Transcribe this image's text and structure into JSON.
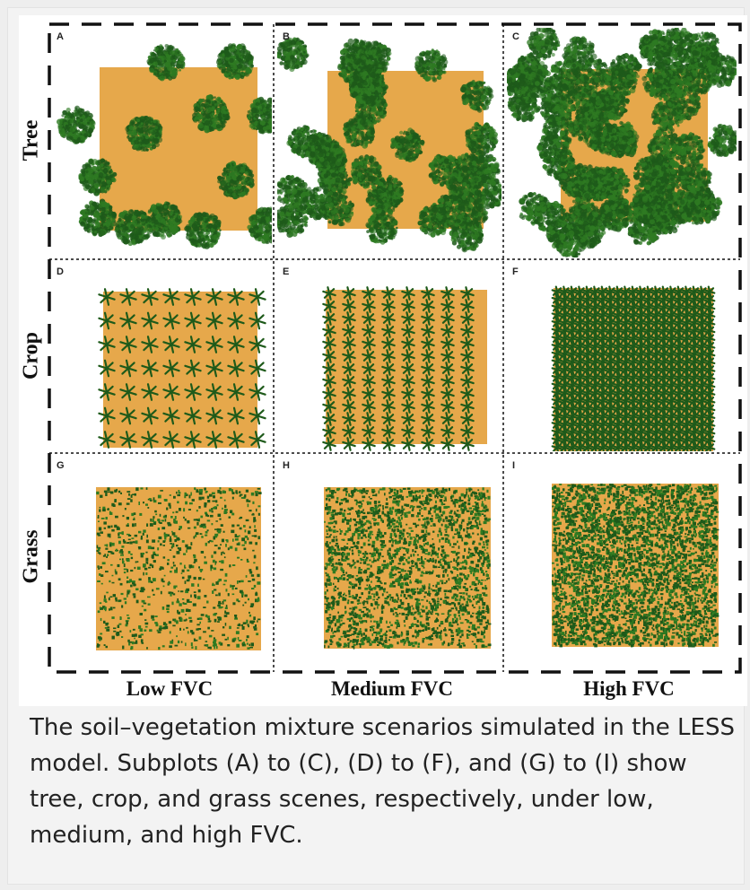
{
  "figure": {
    "panels": [
      {
        "letter": "A",
        "vegetation": "tree",
        "level": "low"
      },
      {
        "letter": "B",
        "vegetation": "tree",
        "level": "medium"
      },
      {
        "letter": "C",
        "vegetation": "tree",
        "level": "high"
      },
      {
        "letter": "D",
        "vegetation": "crop",
        "level": "low"
      },
      {
        "letter": "E",
        "vegetation": "crop",
        "level": "medium"
      },
      {
        "letter": "F",
        "vegetation": "crop",
        "level": "high"
      },
      {
        "letter": "G",
        "vegetation": "grass",
        "level": "low"
      },
      {
        "letter": "H",
        "vegetation": "grass",
        "level": "medium"
      },
      {
        "letter": "I",
        "vegetation": "grass",
        "level": "high"
      }
    ],
    "row_labels": [
      "Tree",
      "Crop",
      "Grass"
    ],
    "column_labels": [
      "Low FVC",
      "Medium FVC",
      "High FVC"
    ],
    "colors": {
      "soil": "#e6a84b",
      "vegetation_dark": "#1e5a1a",
      "vegetation_mid": "#2e7a22",
      "frame": "#111111"
    }
  },
  "caption": "The soil–vegetation mixture scenarios simulated in the LESS model. Subplots (A) to (C), (D) to (F), and (G) to (I) show tree, crop, and grass scenes, respectively, under low, medium, and high FVC."
}
